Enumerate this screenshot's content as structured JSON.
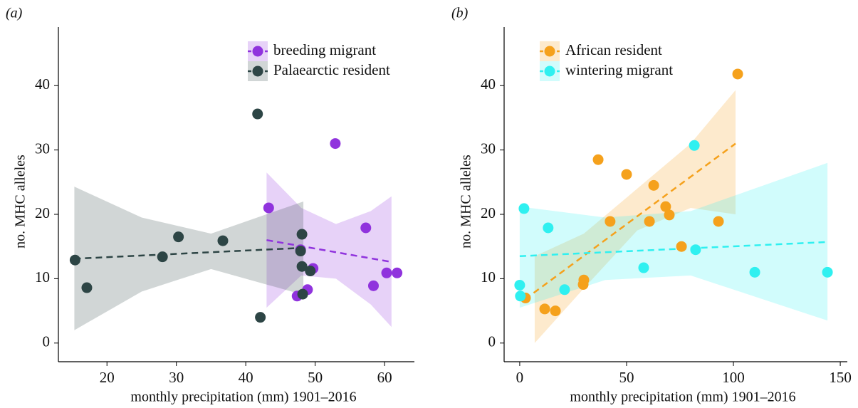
{
  "chart_data": [
    {
      "type": "scatter",
      "panel_label": "(a)",
      "x_label": "monthly precipitation (mm) 1901–2016",
      "y_label": "no. MHC alleles",
      "xlim": [
        13.0,
        64.3
      ],
      "xticks": [
        20,
        30,
        40,
        50,
        60
      ],
      "ylim": [
        -2.9,
        49.1
      ],
      "yticks": [
        0,
        10,
        20,
        30,
        40
      ],
      "legend": "top-right",
      "series": [
        {
          "name": "breeding migrant",
          "color": "#9033dd",
          "x": [
            43.3,
            52.9,
            57.3,
            58.4,
            60.3,
            61.8,
            49.7,
            48.9,
            47.4,
            47.9
          ],
          "values": [
            21.0,
            31.0,
            17.9,
            8.9,
            10.9,
            10.9,
            11.6,
            8.3,
            7.3,
            14.5
          ],
          "trend": {
            "x": [
              43.0,
              61.0
            ],
            "y": [
              16.0,
              12.6
            ]
          },
          "band": {
            "x": [
              43,
              48,
              53,
              58,
              61
            ],
            "upper": [
              26.5,
              21.0,
              18.5,
              20.5,
              22.8
            ],
            "lower": [
              5.5,
              10.5,
              10.0,
              6.0,
              2.5
            ]
          }
        },
        {
          "name": "Palaearctic resident",
          "color": "#2d4545",
          "x": [
            15.4,
            17.1,
            28.0,
            30.3,
            36.7,
            41.7,
            42.1,
            48.1,
            47.9,
            48.1,
            48.2,
            49.3
          ],
          "values": [
            12.9,
            8.6,
            13.4,
            16.5,
            15.9,
            35.6,
            4.0,
            16.9,
            14.3,
            11.9,
            7.6,
            11.2
          ],
          "trend": {
            "x": [
              15.3,
              48.3
            ],
            "y": [
              13.1,
              14.8
            ]
          },
          "band": {
            "x": [
              15.3,
              25,
              35,
              48.3
            ],
            "upper": [
              24.3,
              19.5,
              17.0,
              22.0
            ],
            "lower": [
              2.0,
              8.0,
              11.5,
              7.5
            ]
          }
        }
      ]
    },
    {
      "type": "scatter",
      "panel_label": "(b)",
      "x_label": "monthly precipitation (mm) 1901–2016",
      "y_label": "no. MHC alleles",
      "xlim": [
        -7.3,
        153.3
      ],
      "xticks": [
        0,
        50,
        100,
        150
      ],
      "ylim": [
        -2.9,
        49.1
      ],
      "yticks": [
        0,
        10,
        20,
        30,
        40
      ],
      "legend": "top-left",
      "series": [
        {
          "name": "African resident",
          "color": "#f5a11c",
          "x": [
            2.7,
            11.7,
            16.7,
            36.7,
            50.0,
            62.7,
            68.3,
            70.0,
            42.3,
            60.7,
            75.7,
            93.0,
            29.7,
            30.0,
            102.0
          ],
          "values": [
            7.0,
            5.3,
            5.0,
            28.5,
            26.2,
            24.5,
            21.2,
            19.9,
            18.9,
            18.9,
            15.0,
            18.9,
            9.1,
            9.8,
            41.8
          ],
          "trend": {
            "x": [
              2.5,
              101.0
            ],
            "y": [
              6.8,
              31.0
            ]
          },
          "band": {
            "x": [
              7,
              30,
              55,
              80,
              101
            ],
            "upper": [
              13.5,
              17.0,
              24.0,
              31.0,
              39.3
            ],
            "lower": [
              0.0,
              8.5,
              17.5,
              21.0,
              20.0
            ]
          }
        },
        {
          "name": "wintering migrant",
          "color": "#2ff0f0",
          "x": [
            2.0,
            13.3,
            0.0,
            0.3,
            21.0,
            58.0,
            81.7,
            82.3,
            110.0,
            144.0
          ],
          "values": [
            20.9,
            17.9,
            9.0,
            7.3,
            8.3,
            11.7,
            30.7,
            14.5,
            11.0,
            11.0
          ],
          "trend": {
            "x": [
              0.0,
              144.0
            ],
            "y": [
              13.5,
              15.7
            ]
          },
          "band": {
            "x": [
              0,
              40,
              80,
              144
            ],
            "upper": [
              21.2,
              19.5,
              20.5,
              28.0
            ],
            "lower": [
              5.5,
              9.8,
              10.5,
              3.5
            ]
          }
        }
      ]
    }
  ]
}
